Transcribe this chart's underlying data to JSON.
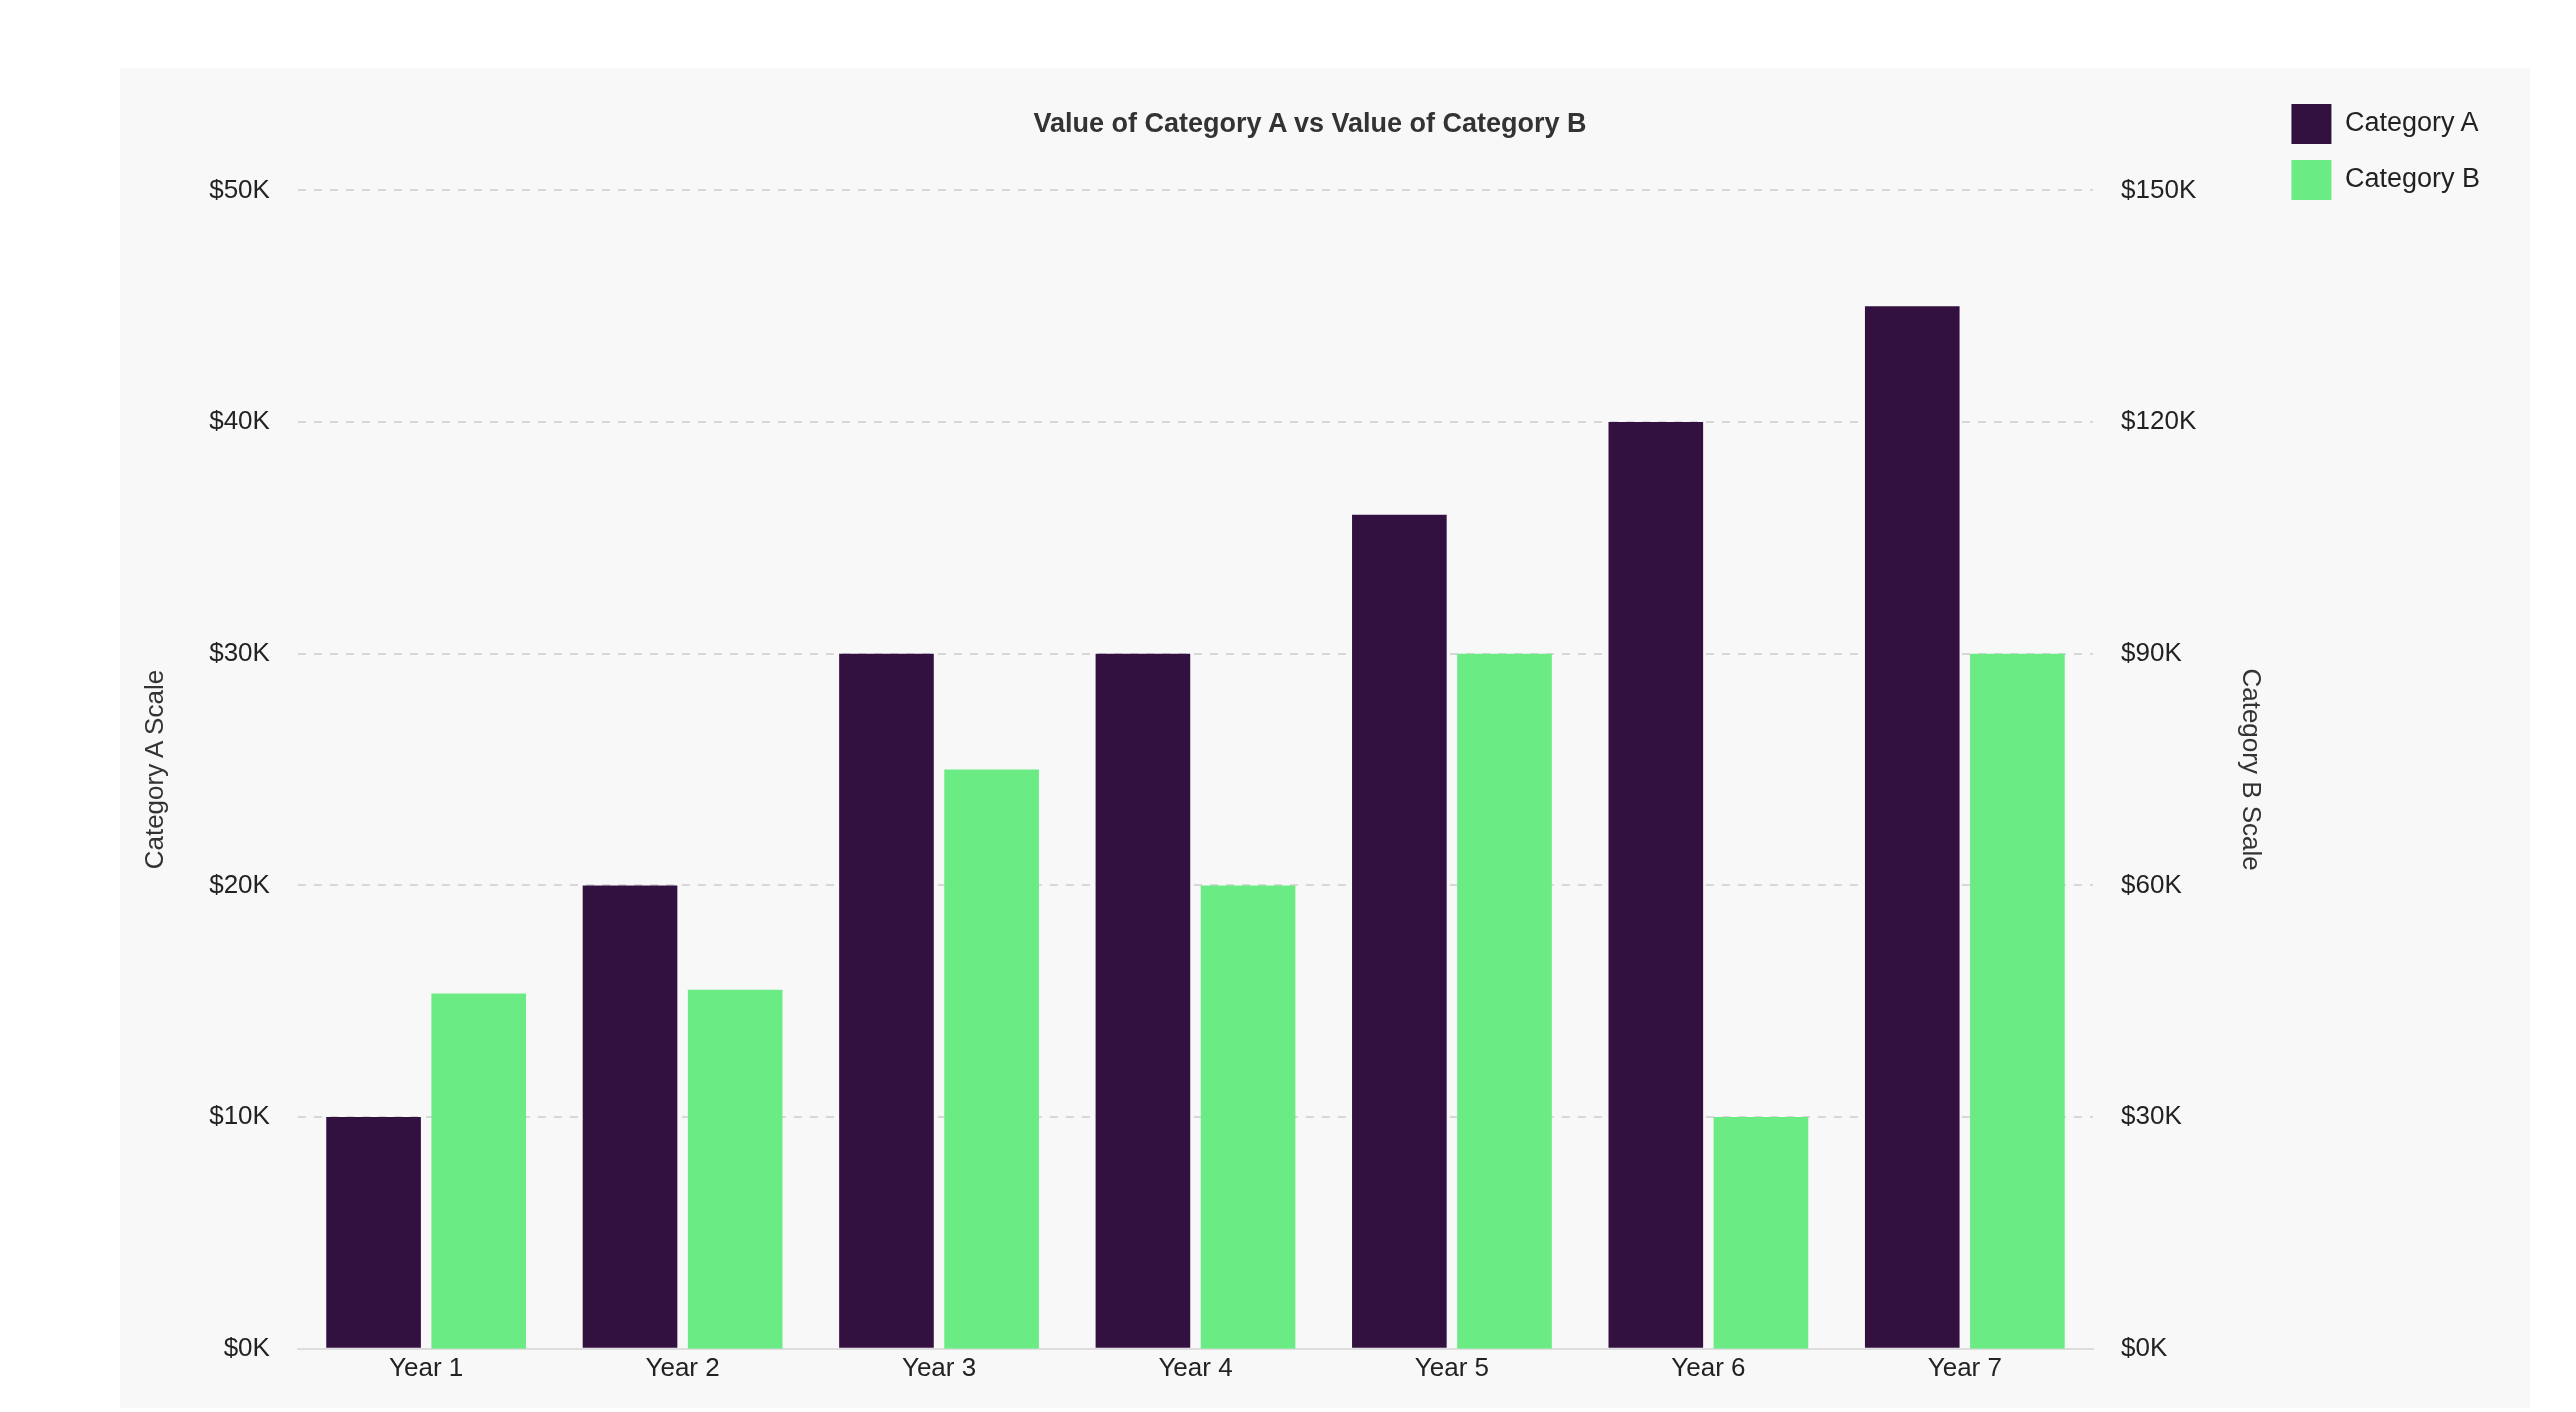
{
  "chart_data": {
    "type": "bar",
    "title": "Value of Category A vs Value of Category B",
    "ylabel": "Category A Scale",
    "y2label": "Category B Scale",
    "categories": [
      "Year 1",
      "Year 2",
      "Year 3",
      "Year 4",
      "Year 5",
      "Year 6",
      "Year 7"
    ],
    "series": [
      {
        "name": "Category A",
        "color": "#321040",
        "values": [
          10000,
          20000,
          30000,
          30000,
          36000,
          40000,
          45000
        ]
      },
      {
        "name": "Category B",
        "color": "#6aeb84",
        "axis": "y2",
        "values": [
          46000,
          46500,
          75000,
          60000,
          90000,
          30000,
          90000
        ]
      }
    ],
    "ylim": [
      0,
      50000
    ],
    "yticks": [
      {
        "value": 0,
        "label": "$0K"
      },
      {
        "value": 10000,
        "label": "$10K"
      },
      {
        "value": 20000,
        "label": "$20K"
      },
      {
        "value": 30000,
        "label": "$30K"
      },
      {
        "value": 40000,
        "label": "$40K"
      },
      {
        "value": 50000,
        "label": "$50K"
      }
    ],
    "y2lim": [
      0,
      150000
    ],
    "y2ticks": [
      {
        "value": 0,
        "label": "$0K"
      },
      {
        "value": 30000,
        "label": "$30K"
      },
      {
        "value": 60000,
        "label": "$60K"
      },
      {
        "value": 90000,
        "label": "$90K"
      },
      {
        "value": 120000,
        "label": "$120K"
      },
      {
        "value": 150000,
        "label": "$150K"
      }
    ],
    "grid": "y",
    "legend": "top right"
  }
}
